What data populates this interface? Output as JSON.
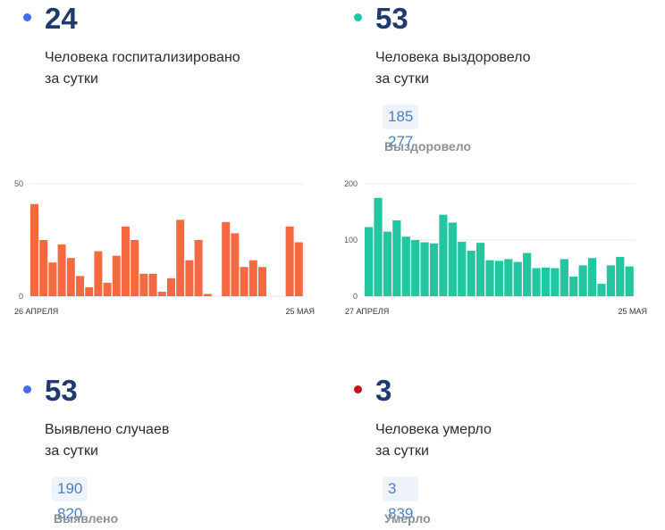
{
  "stats": {
    "hospitalized": {
      "value": "24",
      "line1": "Человека госпитализировано",
      "line2": "за сутки",
      "dot_color": "#3f6ee8"
    },
    "recovered": {
      "value": "53",
      "line1": "Человека выздоровело",
      "line2": "за сутки",
      "dot_color": "#1ec6a6",
      "total": "185 277",
      "total_label": "Выздоровело"
    },
    "cases": {
      "value": "53",
      "line1": "Выявлено случаев",
      "line2": "за сутки",
      "dot_color": "#3f6ee8",
      "total": "190 820",
      "total_label": "Выявлено"
    },
    "deaths": {
      "value": "3",
      "line1": "Человека умерло",
      "line2": "за сутки",
      "dot_color": "#c4121f",
      "total": "3 839",
      "total_label": "Умерло"
    }
  },
  "chart_data": [
    {
      "type": "bar",
      "color": "#f4693f",
      "ylim": [
        0,
        50
      ],
      "yticks": [
        "50",
        "0"
      ],
      "x_start_label": "26 АПРЕЛЯ",
      "x_end_label": "25 МАЯ",
      "values": [
        41,
        25,
        15,
        23,
        17,
        9,
        4,
        20,
        6,
        18,
        31,
        25,
        10,
        10,
        2,
        8,
        34,
        16,
        25,
        1,
        0,
        33,
        28,
        13,
        16,
        13,
        0,
        0,
        31,
        24
      ]
    },
    {
      "type": "bar",
      "color": "#22c7a2",
      "ylim": [
        0,
        200
      ],
      "yticks": [
        "200",
        "100",
        "0"
      ],
      "x_start_label": "27 АПРЕЛЯ",
      "x_end_label": "25 МАЯ",
      "values": [
        123,
        175,
        115,
        135,
        106,
        100,
        96,
        94,
        145,
        131,
        97,
        81,
        95,
        64,
        63,
        66,
        61,
        77,
        50,
        51,
        50,
        66,
        35,
        55,
        68,
        22,
        55,
        70,
        53
      ]
    }
  ]
}
